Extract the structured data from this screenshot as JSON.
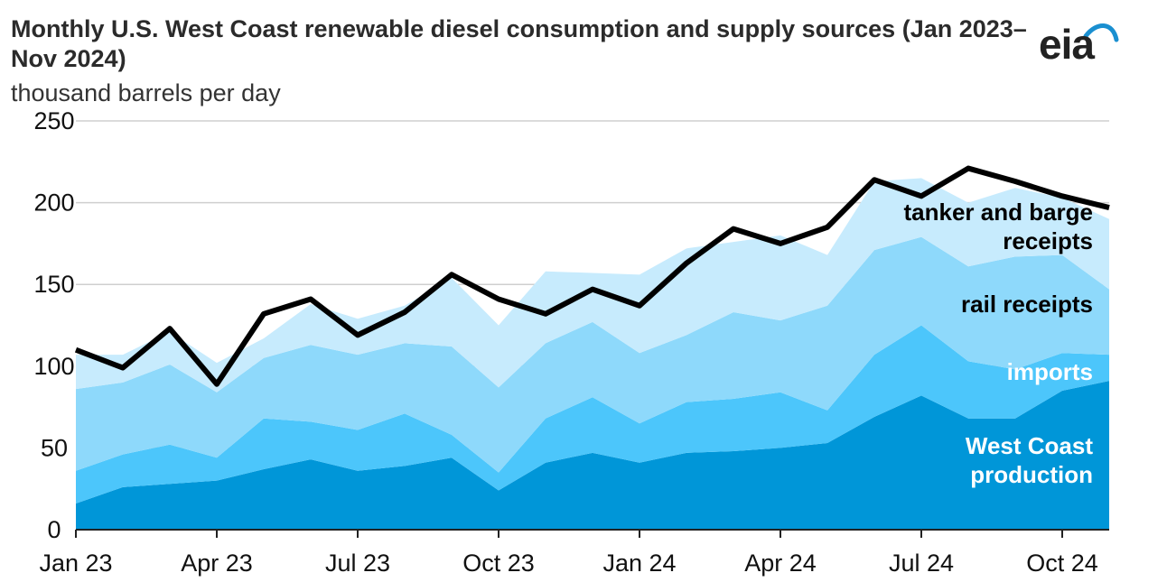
{
  "header": {
    "title": "Monthly U.S. West Coast renewable diesel consumption and supply sources (Jan 2023–Nov 2024)",
    "subtitle": "thousand barrels per day",
    "logo_text": "eia"
  },
  "colors": {
    "west_coast_production": "#0096d8",
    "imports": "#4cc6fb",
    "rail_receipts": "#8ed9fb",
    "tanker_and_barge_receipts": "#c7ebfd",
    "consumption_line": "#000000",
    "grid": "#cfcfcf",
    "logo_arc": "#1a8fd0"
  },
  "chart_data": {
    "type": "area",
    "stacked": true,
    "x": [
      "2023-01",
      "2023-02",
      "2023-03",
      "2023-04",
      "2023-05",
      "2023-06",
      "2023-07",
      "2023-08",
      "2023-09",
      "2023-10",
      "2023-11",
      "2023-12",
      "2024-01",
      "2024-02",
      "2024-03",
      "2024-04",
      "2024-05",
      "2024-06",
      "2024-07",
      "2024-08",
      "2024-09",
      "2024-10",
      "2024-11"
    ],
    "x_tick_labels": [
      "Jan 23",
      "Apr 23",
      "Jul 23",
      "Oct 23",
      "Jan 24",
      "Apr 24",
      "Jul 24",
      "Oct 24"
    ],
    "x_tick_index": [
      0,
      3,
      6,
      9,
      12,
      15,
      18,
      21
    ],
    "ylim": [
      0,
      250
    ],
    "y_ticks": [
      0,
      50,
      100,
      150,
      200,
      250
    ],
    "grid": true,
    "series": [
      {
        "name": "West Coast production",
        "label_lines": [
          "West Coast",
          "production"
        ],
        "label_color": "#ffffff",
        "values": [
          16,
          26,
          28,
          30,
          37,
          43,
          36,
          39,
          44,
          24,
          41,
          47,
          41,
          47,
          48,
          50,
          53,
          69,
          82,
          68,
          68,
          85,
          91
        ]
      },
      {
        "name": "imports",
        "label_lines": [
          "imports"
        ],
        "label_color": "#ffffff",
        "values": [
          20,
          20,
          24,
          14,
          31,
          23,
          25,
          32,
          14,
          11,
          27,
          34,
          24,
          31,
          32,
          34,
          20,
          38,
          43,
          35,
          30,
          23,
          16
        ]
      },
      {
        "name": "rail receipts",
        "label_lines": [
          "rail receipts"
        ],
        "label_color": "#000000",
        "values": [
          50,
          44,
          49,
          40,
          37,
          47,
          46,
          43,
          54,
          52,
          46,
          46,
          43,
          41,
          53,
          44,
          64,
          64,
          54,
          58,
          69,
          60,
          40
        ]
      },
      {
        "name": "tanker and barge receipts",
        "label_lines": [
          "tanker and barge",
          "receipts"
        ],
        "label_color": "#000000",
        "values": [
          21,
          17,
          20,
          18,
          12,
          25,
          22,
          23,
          42,
          38,
          44,
          30,
          48,
          53,
          43,
          52,
          31,
          42,
          36,
          39,
          42,
          35,
          43
        ]
      }
    ],
    "line": {
      "name": "consumption",
      "values": [
        110,
        99,
        123,
        89,
        132,
        141,
        119,
        133,
        156,
        141,
        132,
        147,
        137,
        163,
        184,
        175,
        185,
        214,
        204,
        221,
        213,
        204,
        197
      ]
    }
  }
}
